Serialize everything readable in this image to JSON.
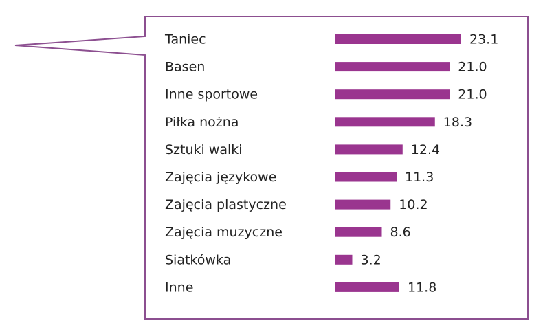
{
  "chart_data": {
    "type": "bar",
    "orientation": "horizontal",
    "categories": [
      "Taniec",
      "Basen",
      "Inne sportowe",
      "Piłka nożna",
      "Sztuki walki",
      "Zajęcia językowe",
      "Zajęcia plastyczne",
      "Zajęcia muzyczne",
      "Siatkówka",
      "Inne"
    ],
    "values": [
      23.1,
      21.0,
      21.0,
      18.3,
      12.4,
      11.3,
      10.2,
      8.6,
      3.2,
      11.8
    ],
    "value_labels": [
      "23.1",
      "21.0",
      "21.0",
      "18.3",
      "12.4",
      "11.3",
      "10.2",
      "8.6",
      "3.2",
      "11.8"
    ],
    "color": "#9a358f"
  }
}
